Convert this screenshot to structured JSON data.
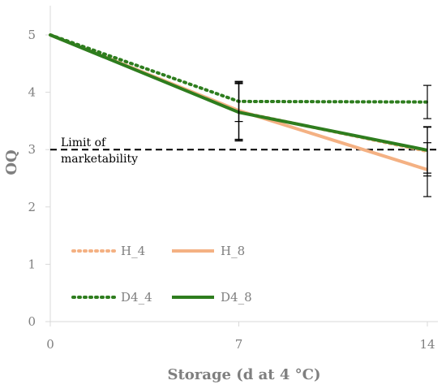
{
  "chart_data": {
    "type": "line",
    "xlabel": "Storage (d at 4 °C)",
    "ylabel": "OQ",
    "x": [
      0,
      7,
      14
    ],
    "x_ticks": [
      0,
      7,
      14
    ],
    "y_ticks": [
      0,
      1,
      2,
      3,
      4,
      5
    ],
    "xlim": [
      0,
      14.4
    ],
    "ylim": [
      0,
      5.5
    ],
    "grid": false,
    "legend_position": "bottom-left",
    "series": [
      {
        "name": "H_4",
        "values": [
          5.0,
          3.66,
          2.97
        ],
        "color": "#f4b183",
        "style": "dotted",
        "error": [
          0,
          0.5,
          0.43
        ]
      },
      {
        "name": "H_8",
        "values": [
          5.0,
          3.68,
          2.65
        ],
        "color": "#f4b183",
        "style": "solid",
        "error": [
          0,
          0.5,
          0.47
        ]
      },
      {
        "name": "D4_4",
        "values": [
          5.0,
          3.84,
          3.83
        ],
        "color": "#2e7d1e",
        "style": "dotted",
        "error": [
          0,
          0.35,
          0.29
        ]
      },
      {
        "name": "D4_8",
        "values": [
          5.0,
          3.65,
          2.99
        ],
        "color": "#2e7d1e",
        "style": "solid",
        "error": [
          0,
          0.5,
          0.4
        ]
      }
    ],
    "reference_line": {
      "y": 3,
      "label_line1": "Limit of",
      "label_line2": "marketability",
      "color": "#000000",
      "style": "dashed"
    }
  }
}
